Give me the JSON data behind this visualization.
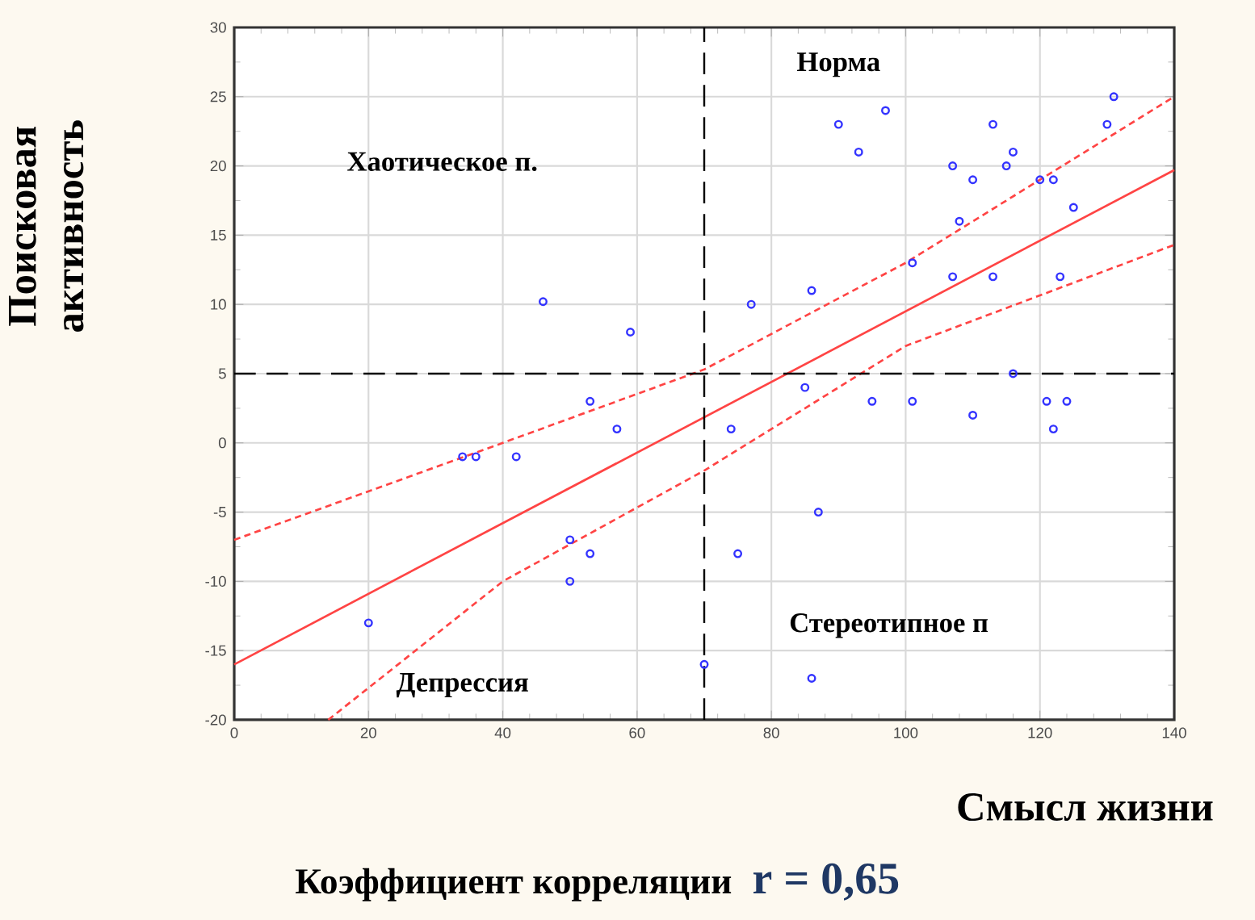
{
  "chart_data": {
    "type": "scatter",
    "xlabel": "Смысл жизни",
    "ylabel": "Поисковая активность",
    "annotations": [
      "Норма",
      "Хаотическое п.",
      "Депрессия",
      "Стереотипное п",
      "Коэффициент корреляции",
      "r = 0,65"
    ],
    "xlim": [
      0,
      140
    ],
    "ylim": [
      -20,
      30
    ],
    "xticks": [
      0,
      20,
      40,
      60,
      80,
      100,
      120,
      140
    ],
    "yticks": [
      -20,
      -15,
      -10,
      -5,
      0,
      5,
      10,
      15,
      20,
      25,
      30
    ],
    "grid": true,
    "ref_lines": [
      {
        "axis": "x",
        "value": 70,
        "color": "#000000",
        "line_style": "dashed"
      },
      {
        "axis": "y",
        "value": 5,
        "color": "#000000",
        "line_style": "dashed"
      }
    ],
    "series": [
      {
        "marker": "circle",
        "color": "#3333ff",
        "x": [
          20,
          34,
          36,
          42,
          46,
          50,
          50,
          53,
          53,
          57,
          59,
          70,
          74,
          75,
          77,
          85,
          86,
          86,
          87,
          90,
          93,
          95,
          97,
          101,
          101,
          107,
          107,
          108,
          110,
          110,
          113,
          113,
          115,
          116,
          116,
          120,
          121,
          122,
          122,
          123,
          124,
          125,
          130,
          131
        ],
        "values": [
          -13,
          -1,
          -1,
          -1,
          10.2,
          -7,
          -10,
          -8,
          3,
          1,
          8,
          -16,
          1,
          -8,
          10,
          4,
          11,
          -17,
          -5,
          23,
          21,
          3,
          24,
          13,
          3,
          20,
          12,
          16,
          19,
          2,
          23,
          12,
          20,
          21,
          5,
          19,
          3,
          19,
          1,
          12,
          3,
          17,
          23,
          25
        ]
      },
      {
        "type": "line",
        "marker": "none",
        "line_style": "solid",
        "color": "#ff4444",
        "x": [
          0,
          140
        ],
        "values": [
          -16,
          19.7
        ]
      },
      {
        "type": "line",
        "marker": "none",
        "line_style": "dashed",
        "color": "#ff4444",
        "x": [
          0,
          40,
          70,
          100,
          140
        ],
        "values": [
          -7,
          0,
          5.3,
          13,
          25
        ]
      },
      {
        "type": "line",
        "marker": "none",
        "line_style": "dashed",
        "color": "#ff4444",
        "x": [
          14,
          40,
          70,
          100,
          140
        ],
        "values": [
          -20,
          -10,
          -2,
          7,
          14.3
        ]
      }
    ]
  }
}
